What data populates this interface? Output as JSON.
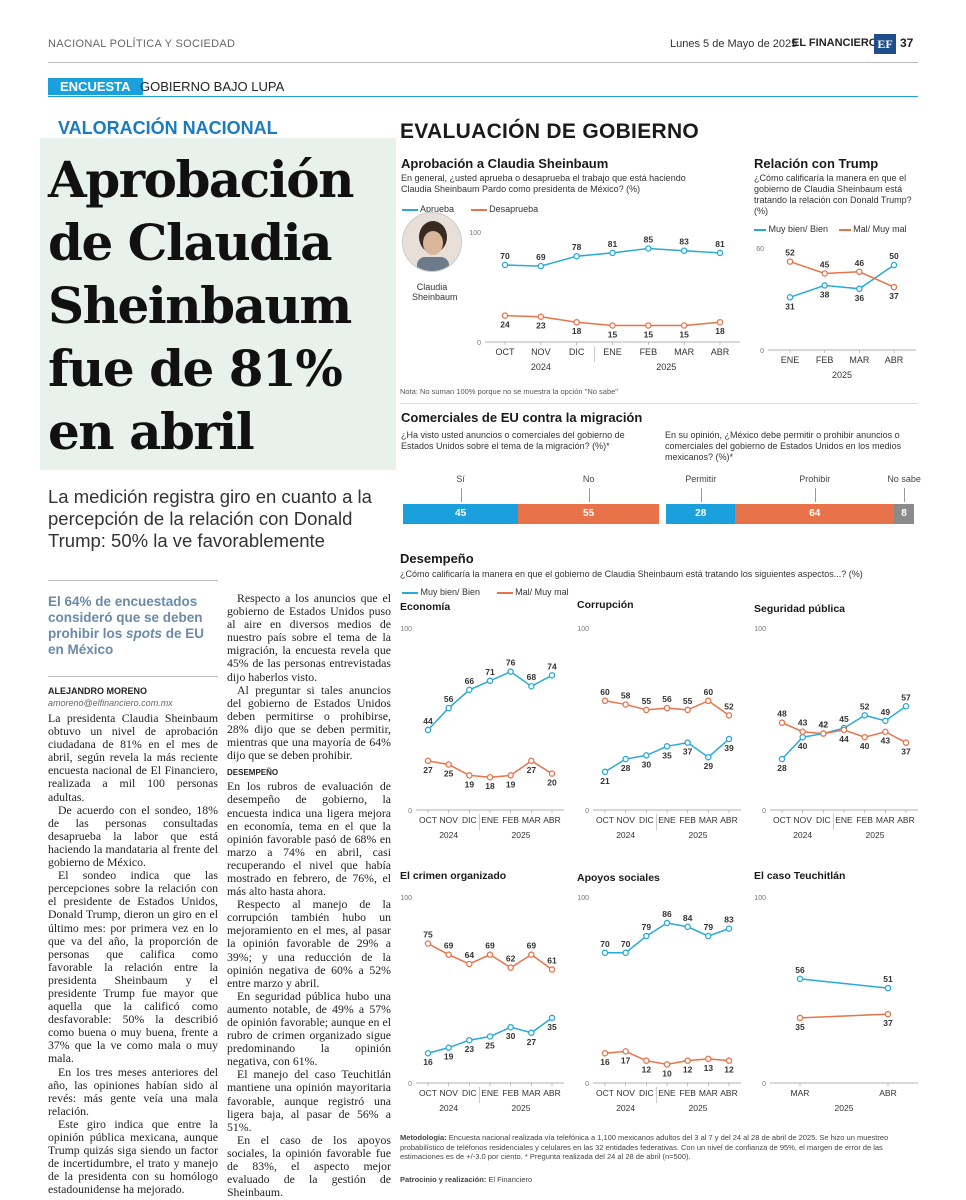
{
  "header": {
    "section": "NACIONAL POLÍTICA Y SOCIEDAD",
    "date": "Lunes 5 de Mayo de 2025",
    "brand": "EL FINANCIERO",
    "logo": "EF",
    "page": "37"
  },
  "tag": {
    "label": "ENCUESTA",
    "series": "GOBIERNO BAJO LUPA"
  },
  "article": {
    "kicker": "VALORACIÓN NACIONAL",
    "headline": "Aprobación de Claudia Sheinbaum fue de 81% en abril",
    "deck": "La medición registra giro en cuanto a la percepción de la relación con Donald Trump: 50% la ve favorablemente",
    "pull_a": "El 64% de encuestados consideró que se deben prohibir los",
    "pull_em": "spots",
    "pull_b": " de EU en México",
    "author": "ALEJANDRO MORENO",
    "email": "amoreno@elfinanciero.com.mx",
    "col1": [
      "La presidenta Claudia Sheinbaum obtuvo un nivel de aprobación ciudadana de 81% en el mes de abril, según revela la más reciente encuesta nacional de El Financiero, realizada a mil 100 personas adultas.",
      "De acuerdo con el sondeo, 18% de las personas consultadas desaprueba la labor que está haciendo la mandataria al frente del gobierno de México.",
      "El sondeo indica que las percepciones sobre la relación con el presidente de Estados Unidos, Donald Trump, dieron un giro en el último mes: por primera vez en lo que va del año, la proporción de personas que califica como favorable la relación entre la presidenta Sheinbaum y el presidente Trump fue mayor que aquella que la calificó como desfavorable: 50% la describió como buena o muy buena, frente a 37% que la ve como mala o muy mala.",
      "En los tres meses anteriores del año, las opiniones habían sido al revés: más gente veía una mala relación.",
      "Este giro indica que entre la opinión pública mexicana, aunque Trump quizás siga siendo un factor de incertidumbre, el trato y manejo de la presidenta con su homólogo estadounidense ha mejorado."
    ],
    "col2a": [
      "Respecto a los anuncios que el gobierno de Estados Unidos puso al aire en diversos medios de nuestro país sobre el tema de la migración, la encuesta revela que 45% de las personas entrevistadas dijo haberlos visto.",
      "Al preguntar si tales anuncios del gobierno de Estados Unidos deben permitirse o prohibirse, 28% dijo que se deben permitir, mientras que una mayoría de 64% dijo que se deben prohibir."
    ],
    "col2_head": "DESEMPEÑO",
    "col2b": [
      "En los rubros de evaluación de desempeño de gobierno, la encuesta indica una ligera mejora en economía, tema en el que la opinión favorable pasó de 68% en marzo a 74% en abril, casi recuperando el nivel que había mostrado en febrero, de 76%, el más alto hasta ahora.",
      "Respecto al manejo de la corrupción también hubo un mejoramiento en el mes, al pasar la opinión favorable de 29% a 39%; y una reducción de la opinión negativa de 60% a 52% entre marzo y abril.",
      "En seguridad pública hubo una aumento notable, de 49% a 57% de opinión favorable; aunque en el rubro de crimen organizado sigue predominando la opinión negativa, con 61%.",
      "El manejo del caso Teuchitlán mantiene una opinión mayoritaria favorable, aunque registró una ligera baja, al pasar de 56% a 51%.",
      "En el caso de los apoyos sociales, la opinión favorable fue de 83%, el aspecto mejor evaluado de la gestión de Sheinbaum."
    ]
  },
  "panel": {
    "title": "EVALUACIÓN DE GOBIERNO",
    "approval": {
      "title": "Aprobación a Claudia Sheinbaum",
      "question": "En general, ¿usted aprueba o desaprueba el trabajo que está haciendo Claudia Sheinbaum Pardo como presidenta de México? (%)",
      "legend": [
        "Aprueba",
        "Desaprueba"
      ],
      "photo_caption": "Claudia Sheinbaum",
      "note": "Nota: No suman 100% porque no se muestra la opción \"No sabe\""
    },
    "trump": {
      "title": "Relación con Trump",
      "question": "¿Cómo calificaría la manera en que el gobierno de Claudia Sheinbaum está tratando la relación con Donald Trump? (%)",
      "legend": [
        "Muy bien/ Bien",
        "Mal/ Muy mal"
      ]
    },
    "ads": {
      "title": "Comerciales de EU contra la migración",
      "q1": "¿Ha visto usted anuncios o comerciales del gobierno de Estados Unidos sobre el tema de la migración? (%)*",
      "q2": "En su opinión, ¿México debe permitir o prohibir anuncios o comerciales del gobierno de Estados Unidos en los medios mexicanos? (%)*"
    },
    "perf": {
      "title": "Desempeño",
      "question": "¿Cómo calificaría la manera en que el gobierno de Claudia Sheinbaum está tratando los siguientes aspectos...? (%)",
      "legend": [
        "Muy bien/ Bien",
        "Mal/ Muy mal"
      ]
    },
    "methodology_label": "Metodología:",
    "methodology": "Encuesta nacional realizada vía telefónica a 1,100 mexicanos adultos del 3 al 7 y del 24 al 28 de abril de 2025. Se hizo un muestreo probabilístico de teléfonos residenciales y celulares en las 32 entidades federativas. Con un nivel de confianza de 95%, el margen de error de las estimaciones es de +/-3.0 por ciento. * Pregunta realizada del 24 al 28 de abril (n=500).",
    "sponsor_label": "Patrocinio y realización:",
    "sponsor": "El Financiero"
  },
  "colors": {
    "blue": "#29a9d8",
    "orange": "#e8734a",
    "cyan": "#1aa0dc",
    "gray": "#8a8a8a"
  },
  "chart_data": [
    {
      "id": "aprobacion",
      "type": "line",
      "title": "Aprobación a Claudia Sheinbaum",
      "categories": [
        "OCT",
        "NOV",
        "DIC",
        "ENE",
        "FEB",
        "MAR",
        "ABR"
      ],
      "years": [
        {
          "label": "2024",
          "span": [
            0,
            2
          ]
        },
        {
          "label": "2025",
          "span": [
            3,
            6
          ]
        }
      ],
      "ylim": [
        0,
        100
      ],
      "yticks": [
        0,
        100
      ],
      "series": [
        {
          "name": "Aprueba",
          "color": "#29a9d8",
          "values": [
            70,
            69,
            78,
            81,
            85,
            83,
            81
          ]
        },
        {
          "name": "Desaprueba",
          "color": "#e8734a",
          "values": [
            24,
            23,
            18,
            15,
            15,
            15,
            18
          ]
        }
      ]
    },
    {
      "id": "trump",
      "type": "line",
      "title": "Relación con Trump",
      "categories": [
        "ENE",
        "FEB",
        "MAR",
        "ABR"
      ],
      "years": [
        {
          "label": "2025",
          "span": [
            0,
            3
          ]
        }
      ],
      "ylim": [
        0,
        60
      ],
      "yticks": [
        0,
        60
      ],
      "series": [
        {
          "name": "Muy bien/ Bien",
          "color": "#29a9d8",
          "values": [
            31,
            38,
            36,
            50
          ]
        },
        {
          "name": "Mal/ Muy mal",
          "color": "#e8734a",
          "values": [
            52,
            45,
            46,
            37
          ]
        }
      ]
    },
    {
      "id": "ads_seen",
      "type": "bar",
      "stacked": true,
      "categories": [
        "Sí",
        "No"
      ],
      "values": [
        45,
        55
      ],
      "colors": [
        "#1aa0dc",
        "#e8734a"
      ]
    },
    {
      "id": "ads_allow",
      "type": "bar",
      "stacked": true,
      "categories": [
        "Permitir",
        "Prohibir",
        "No sabe"
      ],
      "values": [
        28,
        64,
        8
      ],
      "colors": [
        "#1aa0dc",
        "#e8734a",
        "#8a8a8a"
      ]
    },
    {
      "id": "economia",
      "type": "line",
      "title": "Economía",
      "categories": [
        "OCT",
        "NOV",
        "DIC",
        "ENE",
        "FEB",
        "MAR",
        "ABR"
      ],
      "years": [
        {
          "label": "2024",
          "span": [
            0,
            2
          ]
        },
        {
          "label": "2025",
          "span": [
            3,
            6
          ]
        }
      ],
      "ylim": [
        0,
        100
      ],
      "yticks": [
        0,
        100
      ],
      "series": [
        {
          "name": "Muy bien/ Bien",
          "color": "#29a9d8",
          "values": [
            44,
            56,
            66,
            71,
            76,
            68,
            74
          ]
        },
        {
          "name": "Mal/ Muy mal",
          "color": "#e8734a",
          "values": [
            27,
            25,
            19,
            18,
            19,
            27,
            20
          ]
        }
      ]
    },
    {
      "id": "corrupcion",
      "type": "line",
      "title": "Corrupción",
      "categories": [
        "OCT",
        "NOV",
        "DIC",
        "ENE",
        "FEB",
        "MAR",
        "ABR"
      ],
      "years": [
        {
          "label": "2024",
          "span": [
            0,
            2
          ]
        },
        {
          "label": "2025",
          "span": [
            3,
            6
          ]
        }
      ],
      "ylim": [
        0,
        100
      ],
      "yticks": [
        0,
        100
      ],
      "series": [
        {
          "name": "Muy bien/ Bien",
          "color": "#29a9d8",
          "values": [
            21,
            28,
            30,
            35,
            37,
            29,
            39
          ]
        },
        {
          "name": "Mal/ Muy mal",
          "color": "#e8734a",
          "values": [
            60,
            58,
            55,
            56,
            55,
            60,
            52
          ]
        }
      ]
    },
    {
      "id": "seguridad",
      "type": "line",
      "title": "Seguridad pública",
      "categories": [
        "OCT",
        "NOV",
        "DIC",
        "ENE",
        "FEB",
        "MAR",
        "ABR"
      ],
      "years": [
        {
          "label": "2024",
          "span": [
            0,
            2
          ]
        },
        {
          "label": "2025",
          "span": [
            3,
            6
          ]
        }
      ],
      "ylim": [
        0,
        100
      ],
      "yticks": [
        0,
        100
      ],
      "series": [
        {
          "name": "Muy bien/ Bien",
          "color": "#29a9d8",
          "values": [
            28,
            40,
            42,
            45,
            52,
            49,
            57
          ]
        },
        {
          "name": "Mal/ Muy mal",
          "color": "#e8734a",
          "values": [
            48,
            43,
            42,
            44,
            40,
            43,
            37
          ]
        }
      ]
    },
    {
      "id": "crimen",
      "type": "line",
      "title": "El crimen organizado",
      "categories": [
        "OCT",
        "NOV",
        "DIC",
        "ENE",
        "FEB",
        "MAR",
        "ABR"
      ],
      "years": [
        {
          "label": "2024",
          "span": [
            0,
            2
          ]
        },
        {
          "label": "2025",
          "span": [
            3,
            6
          ]
        }
      ],
      "ylim": [
        0,
        100
      ],
      "yticks": [
        0,
        100
      ],
      "series": [
        {
          "name": "Muy bien/ Bien",
          "color": "#29a9d8",
          "values": [
            16,
            19,
            23,
            25,
            30,
            27,
            35
          ]
        },
        {
          "name": "Mal/ Muy mal",
          "color": "#e8734a",
          "values": [
            75,
            69,
            64,
            69,
            62,
            69,
            61
          ]
        }
      ]
    },
    {
      "id": "apoyos",
      "type": "line",
      "title": "Apoyos sociales",
      "categories": [
        "OCT",
        "NOV",
        "DIC",
        "ENE",
        "FEB",
        "MAR",
        "ABR"
      ],
      "years": [
        {
          "label": "2024",
          "span": [
            0,
            2
          ]
        },
        {
          "label": "2025",
          "span": [
            3,
            6
          ]
        }
      ],
      "ylim": [
        0,
        100
      ],
      "yticks": [
        0,
        100
      ],
      "series": [
        {
          "name": "Muy bien/ Bien",
          "color": "#29a9d8",
          "values": [
            70,
            70,
            79,
            86,
            84,
            79,
            83
          ]
        },
        {
          "name": "Mal/ Muy mal",
          "color": "#e8734a",
          "values": [
            16,
            17,
            12,
            10,
            12,
            13,
            12
          ]
        }
      ]
    },
    {
      "id": "teuchitlan",
      "type": "line",
      "title": "El caso Teuchitlán",
      "categories": [
        "MAR",
        "ABR"
      ],
      "years": [
        {
          "label": "2025",
          "span": [
            0,
            1
          ]
        }
      ],
      "ylim": [
        0,
        100
      ],
      "yticks": [
        0,
        100
      ],
      "series": [
        {
          "name": "Muy bien/ Bien",
          "color": "#29a9d8",
          "values": [
            56,
            51
          ]
        },
        {
          "name": "Mal/ Muy mal",
          "color": "#e8734a",
          "values": [
            35,
            37
          ]
        }
      ]
    }
  ]
}
